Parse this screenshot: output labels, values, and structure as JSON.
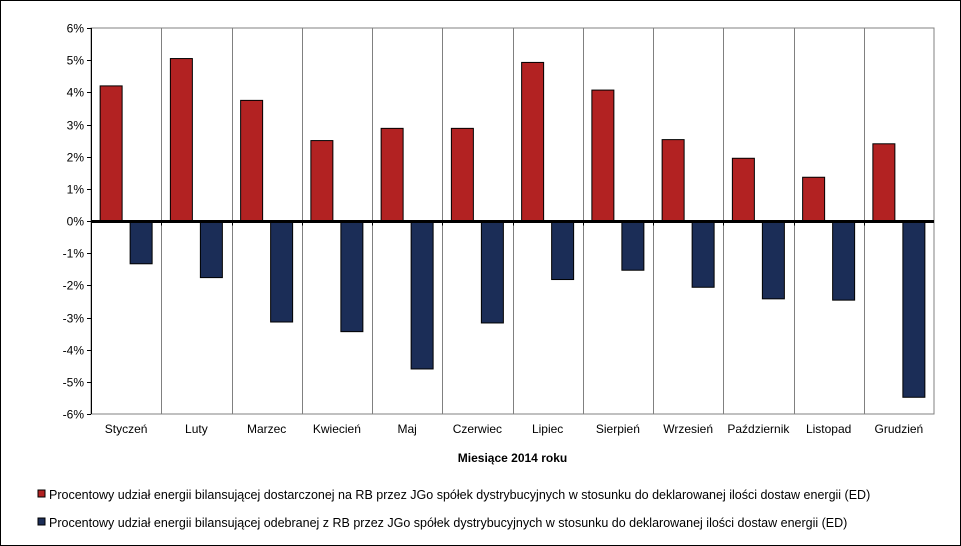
{
  "chart_data": {
    "type": "bar",
    "xlabel": "Miesiące 2014 roku",
    "ylabel": "",
    "ylim": [
      -6,
      6
    ],
    "yticks": [
      6,
      5,
      4,
      3,
      2,
      1,
      0,
      -1,
      -2,
      -3,
      -4,
      -5,
      -6
    ],
    "ytick_labels": [
      "6%",
      "5%",
      "4%",
      "3%",
      "2%",
      "1%",
      "0%",
      "-1%",
      "-2%",
      "-3%",
      "-4%",
      "-5%",
      "-6%"
    ],
    "grid": "vertical",
    "legend_position": "bottom",
    "categories": [
      "Styczeń",
      "Luty",
      "Marzec",
      "Kwiecień",
      "Maj",
      "Czerwiec",
      "Lipiec",
      "Sierpień",
      "Wrzesień",
      "Październik",
      "Listopad",
      "Grudzień"
    ],
    "series": [
      {
        "name": "Procentowy udział energii bilansującej dostarczonej na RB przez JGo spółek dystrybucyjnych w stosunku do deklarowanej ilości dostaw energii (ED)",
        "color": "#B22222",
        "values": [
          4.2,
          5.05,
          3.75,
          2.5,
          2.88,
          2.88,
          4.93,
          4.07,
          2.53,
          1.95,
          1.36,
          2.4
        ]
      },
      {
        "name": "Procentowy udział energii bilansującej odebranej z RB przez JGo spółek dystrybucyjnych w stosunku do deklarowanej ilości dostaw energii (ED)",
        "color": "#1B2D57",
        "values": [
          -1.33,
          -1.76,
          -3.14,
          -3.44,
          -4.6,
          -3.17,
          -1.82,
          -1.53,
          -2.06,
          -2.42,
          -2.46,
          -5.48
        ]
      }
    ]
  }
}
